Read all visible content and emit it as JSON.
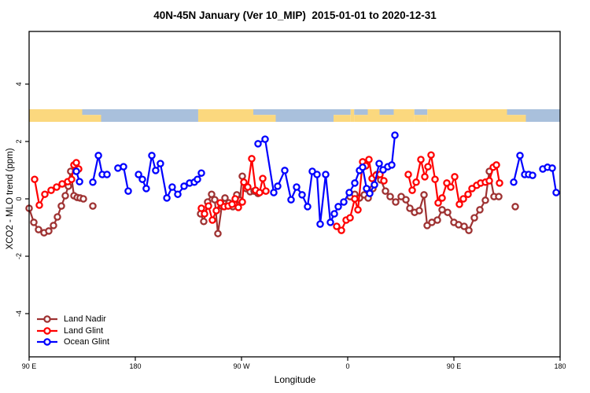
{
  "title": "40N-45N January (Ver 10_MIP)  2015-01-01 to 2020-12-31",
  "axes": {
    "x_label": "Longitude",
    "y_label": "XCO2 - MLO trend (ppm)",
    "x_ticks": [
      {
        "pos": 0,
        "label": "90 E"
      },
      {
        "pos": 90,
        "label": "180"
      },
      {
        "pos": 180,
        "label": "90 W"
      },
      {
        "pos": 270,
        "label": "0"
      },
      {
        "pos": 360,
        "label": "90 E"
      },
      {
        "pos": 450,
        "label": "180"
      }
    ],
    "y_ticks": [
      {
        "value": -4,
        "label": "-4"
      },
      {
        "value": -2,
        "label": "-2"
      },
      {
        "value": 0,
        "label": "0"
      },
      {
        "value": 2,
        "label": "2"
      },
      {
        "value": 4,
        "label": "4"
      }
    ]
  },
  "map_strip": {
    "description": "land/ocean mini-map band drawn near +3 ppm",
    "land_color": "#FBD87E",
    "ocean_color": "#A9C0DC",
    "segments": [
      {
        "from": 0,
        "to": 45,
        "type": "land"
      },
      {
        "from": 45,
        "to": 61,
        "type": "mixed"
      },
      {
        "from": 61,
        "to": 143.3,
        "type": "ocean"
      },
      {
        "from": 143.3,
        "to": 190,
        "type": "land"
      },
      {
        "from": 190,
        "to": 209,
        "type": "mixed"
      },
      {
        "from": 209,
        "to": 258,
        "type": "ocean"
      },
      {
        "from": 258,
        "to": 272.5,
        "type": "mixed"
      },
      {
        "from": 272.5,
        "to": 275.5,
        "type": "land"
      },
      {
        "from": 275.5,
        "to": 287,
        "type": "mixed"
      },
      {
        "from": 287,
        "to": 297,
        "type": "land"
      },
      {
        "from": 297,
        "to": 309,
        "type": "mixed"
      },
      {
        "from": 309,
        "to": 326.5,
        "type": "land"
      },
      {
        "from": 326.5,
        "to": 337.5,
        "type": "mixed"
      },
      {
        "from": 337.5,
        "to": 405,
        "type": "land"
      },
      {
        "from": 405,
        "to": 421,
        "type": "mixed"
      },
      {
        "from": 421,
        "to": 450,
        "type": "ocean"
      }
    ]
  },
  "chart_data": {
    "type": "line",
    "title": "40N-45N January (Ver 10_MIP)  2015-01-01 to 2020-12-31",
    "xlabel": "Longitude",
    "ylabel": "XCO2 - MLO trend (ppm)",
    "x_axis_note": "x = degrees eastward along axis, 0 = 90E, 90 = 180, 180 = 90W, 270 = 0, 360 = 90E, 450 = 180",
    "xlim": [
      0,
      450
    ],
    "ylim": [
      -5.5,
      5.8
    ],
    "grid": false,
    "legend_position": "bottom-left",
    "marker": "open-circle",
    "series": [
      {
        "name": "Land Nadir",
        "color": "#9E3232",
        "segments": [
          [
            [
              0,
              -0.33
            ],
            [
              4,
              -0.82
            ],
            [
              8,
              -1.07
            ],
            [
              12.7,
              -1.18
            ],
            [
              16.7,
              -1.12
            ],
            [
              20.7,
              -0.93
            ],
            [
              24,
              -0.63
            ],
            [
              27.3,
              -0.25
            ],
            [
              30.7,
              0.11
            ],
            [
              33.3,
              0.44
            ],
            [
              35.3,
              0.96
            ],
            [
              38,
              0.11
            ],
            [
              40.7,
              0.05
            ],
            [
              43.3,
              0.03
            ],
            [
              46,
              0
            ]
          ],
          [
            [
              54,
              -0.25
            ]
          ],
          [
            [
              145.3,
              -0.52
            ],
            [
              148,
              -0.79
            ],
            [
              151.3,
              -0.11
            ],
            [
              154.7,
              0.16
            ],
            [
              157.3,
              -0.03
            ],
            [
              160,
              -1.21
            ],
            [
              163.3,
              -0.25
            ],
            [
              166,
              0.03
            ],
            [
              169.3,
              -0.14
            ],
            [
              172.7,
              -0.27
            ],
            [
              176,
              0.14
            ],
            [
              178.7,
              -0.05
            ],
            [
              180.7,
              0.79
            ],
            [
              184,
              0.36
            ],
            [
              187.3,
              0.25
            ],
            [
              190.7,
              0.27
            ],
            [
              194,
              0.19
            ]
          ],
          [
            [
              272,
              0.08
            ],
            [
              276,
              0.16
            ],
            [
              280,
              0.03
            ],
            [
              284,
              0.14
            ],
            [
              287.3,
              0.03
            ],
            [
              291.3,
              0.36
            ],
            [
              294.7,
              0.85
            ],
            [
              298,
              0.66
            ],
            [
              302,
              0.27
            ],
            [
              306,
              0.08
            ],
            [
              310.7,
              -0.11
            ],
            [
              315.3,
              0.08
            ],
            [
              319.3,
              -0.03
            ],
            [
              322.7,
              -0.33
            ],
            [
              326.7,
              -0.47
            ],
            [
              330.7,
              -0.41
            ],
            [
              334.7,
              0.14
            ],
            [
              337.3,
              -0.93
            ],
            [
              341.3,
              -0.82
            ],
            [
              346,
              -0.74
            ],
            [
              350,
              -0.38
            ],
            [
              354.7,
              -0.47
            ],
            [
              360,
              -0.82
            ],
            [
              364,
              -0.9
            ],
            [
              368.7,
              -0.96
            ],
            [
              372.7,
              -1.1
            ],
            [
              377.3,
              -0.66
            ],
            [
              382,
              -0.38
            ],
            [
              386.7,
              -0.05
            ],
            [
              390,
              0.96
            ],
            [
              394,
              0.08
            ],
            [
              398,
              0.08
            ]
          ],
          [
            [
              412,
              -0.27
            ]
          ]
        ]
      },
      {
        "name": "Land Glint",
        "color": "#FF0000",
        "segments": [
          [
            [
              4.7,
              0.68
            ],
            [
              8.7,
              -0.22
            ],
            [
              13.3,
              0.16
            ],
            [
              18.7,
              0.3
            ],
            [
              23.3,
              0.41
            ],
            [
              28,
              0.52
            ],
            [
              32.7,
              0.6
            ],
            [
              36,
              0.68
            ],
            [
              38,
              1.18
            ],
            [
              40,
              1.26
            ],
            [
              42,
              1.04
            ]
          ],
          [
            [
              146,
              -0.33
            ],
            [
              148.7,
              -0.52
            ],
            [
              152,
              -0.25
            ],
            [
              155.3,
              -0.74
            ],
            [
              158.7,
              -0.41
            ],
            [
              162,
              -0.14
            ],
            [
              165.3,
              -0.27
            ],
            [
              168.7,
              -0.25
            ],
            [
              172,
              -0.19
            ],
            [
              174.7,
              0
            ],
            [
              177.3,
              -0.3
            ],
            [
              180.7,
              -0.11
            ],
            [
              182,
              0.58
            ],
            [
              185.3,
              0.41
            ],
            [
              188.7,
              1.4
            ],
            [
              192,
              0.3
            ],
            [
              195.3,
              0.22
            ],
            [
              198,
              0.71
            ],
            [
              200.7,
              0.27
            ]
          ],
          [
            [
              260.7,
              -0.96
            ],
            [
              264.7,
              -1.1
            ],
            [
              268.7,
              -0.74
            ],
            [
              272,
              -0.66
            ],
            [
              276,
              0
            ],
            [
              278.7,
              -0.38
            ],
            [
              282.7,
              1.29
            ],
            [
              285.3,
              1.15
            ],
            [
              288,
              1.37
            ],
            [
              290.7,
              0.71
            ],
            [
              294,
              0.82
            ],
            [
              297.3,
              0.85
            ],
            [
              300.7,
              0.63
            ]
          ],
          [
            [
              321.3,
              0.85
            ],
            [
              324.7,
              0.3
            ],
            [
              328,
              0.58
            ],
            [
              332,
              1.37
            ],
            [
              335.3,
              0.77
            ],
            [
              338,
              1.12
            ],
            [
              340.7,
              1.53
            ],
            [
              344,
              0.68
            ],
            [
              346.7,
              -0.14
            ],
            [
              350,
              0.03
            ],
            [
              354,
              0.55
            ],
            [
              357.3,
              0.41
            ],
            [
              360.7,
              0.77
            ],
            [
              364.7,
              -0.19
            ],
            [
              368,
              0
            ],
            [
              372,
              0.16
            ],
            [
              375.3,
              0.36
            ],
            [
              379.3,
              0.47
            ],
            [
              382.7,
              0.55
            ],
            [
              386.7,
              0.58
            ],
            [
              390,
              0.63
            ],
            [
              393.3,
              1.1
            ],
            [
              396,
              1.18
            ],
            [
              398.7,
              0.55
            ]
          ]
        ]
      },
      {
        "name": "Ocean Glint",
        "color": "#0000FF",
        "segments": [
          [
            [
              40,
              0.96
            ],
            [
              42.7,
              0.6
            ]
          ],
          [
            [
              54,
              0.58
            ],
            [
              58.7,
              1.51
            ],
            [
              62,
              0.85
            ],
            [
              66,
              0.85
            ]
          ],
          [
            [
              75.3,
              1.07
            ],
            [
              80,
              1.12
            ],
            [
              84,
              0.27
            ]
          ],
          [
            [
              92.7,
              0.85
            ],
            [
              96,
              0.68
            ],
            [
              99.3,
              0.36
            ],
            [
              104,
              1.51
            ],
            [
              107.3,
              0.99
            ],
            [
              111.3,
              1.23
            ],
            [
              116.7,
              0.03
            ],
            [
              121.3,
              0.41
            ],
            [
              126,
              0.16
            ],
            [
              131.3,
              0.44
            ],
            [
              136,
              0.55
            ],
            [
              140,
              0.58
            ],
            [
              142.7,
              0.68
            ],
            [
              146,
              0.9
            ]
          ],
          [
            [
              194,
              1.92
            ],
            [
              200,
              2.08
            ],
            [
              207.3,
              0.22
            ],
            [
              210.7,
              0.44
            ],
            [
              216.7,
              0.99
            ],
            [
              222,
              -0.03
            ],
            [
              226.7,
              0.41
            ],
            [
              231.3,
              0.14
            ],
            [
              236,
              -0.27
            ],
            [
              240,
              0.96
            ],
            [
              244,
              0.85
            ],
            [
              246.7,
              -0.88
            ],
            [
              251.3,
              0.85
            ],
            [
              255.3,
              -0.82
            ],
            [
              258.7,
              -0.52
            ],
            [
              262,
              -0.27
            ],
            [
              266.7,
              -0.11
            ],
            [
              271.3,
              0.22
            ],
            [
              276,
              0.55
            ],
            [
              280,
              0.99
            ],
            [
              282.7,
              1.1
            ],
            [
              286,
              0.36
            ],
            [
              288.7,
              0.19
            ],
            [
              292.7,
              0.49
            ],
            [
              296.7,
              1.23
            ],
            [
              300,
              1.01
            ],
            [
              304,
              1.12
            ],
            [
              307.3,
              1.18
            ],
            [
              310,
              2.22
            ]
          ],
          [
            [
              410.7,
              0.58
            ],
            [
              416,
              1.51
            ],
            [
              420,
              0.85
            ],
            [
              423.3,
              0.85
            ],
            [
              426.7,
              0.82
            ]
          ],
          [
            [
              435.3,
              1.04
            ],
            [
              439.3,
              1.1
            ],
            [
              443.3,
              1.07
            ],
            [
              446.7,
              0.22
            ]
          ]
        ]
      }
    ]
  }
}
